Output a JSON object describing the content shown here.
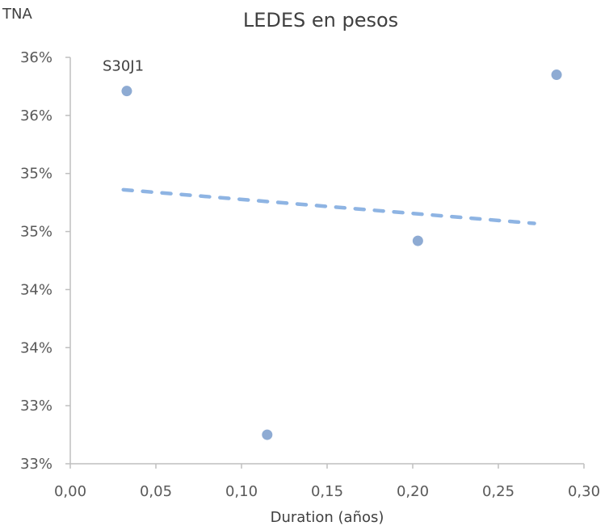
{
  "chart_data": {
    "type": "scatter",
    "title": "LEDES en pesos",
    "ylabel": "TNA",
    "xlabel": "Duration (años)",
    "xlim": [
      0.0,
      0.3
    ],
    "ylim": [
      33.0,
      36.5
    ],
    "x_ticks": [
      "0,00",
      "0,05",
      "0,10",
      "0,15",
      "0,20",
      "0,25",
      "0,30"
    ],
    "y_ticks": [
      "33%",
      "33%",
      "34%",
      "34%",
      "35%",
      "35%",
      "36%",
      "36%"
    ],
    "series": [
      {
        "points": [
          {
            "x": 0.033,
            "y": 36.21
          },
          {
            "x": 0.115,
            "y": 33.25
          },
          {
            "x": 0.203,
            "y": 34.92
          },
          {
            "x": 0.284,
            "y": 36.35
          }
        ]
      }
    ],
    "trendline": {
      "style": "dashed",
      "points": [
        {
          "x": 0.031,
          "y": 35.36
        },
        {
          "x": 0.271,
          "y": 35.07
        }
      ]
    },
    "annotations": [
      {
        "text": "S30J1",
        "x": 0.033,
        "y": 36.21
      }
    ],
    "grid": false,
    "colors": {
      "point": "#8eabd3",
      "trendline": "#8eb4e3",
      "axis": "#bfbfbf",
      "text": "#404040"
    }
  }
}
